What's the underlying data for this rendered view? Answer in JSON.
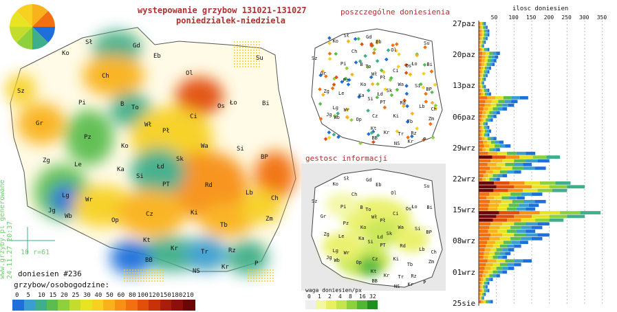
{
  "title": "wystepowanie grzybow 131021-131027",
  "subtitle": "poniedzialek-niedziela",
  "sidebar_note": "www.grzyby.pl generowane 24.11.27 20:37",
  "radius_label": "10 r=61",
  "reports_count": "doniesien #236",
  "per_person_label": "grzybow/osobogodzine:",
  "intensity_legend": {
    "ticks": [
      "0",
      "5",
      "10",
      "15",
      "20",
      "25",
      "30",
      "40",
      "50",
      "60",
      "80",
      "100",
      "120",
      "150",
      "180",
      "210"
    ],
    "colors": [
      "#1e6fd9",
      "#3a9fd0",
      "#3fae8a",
      "#5bbd4f",
      "#8fd13c",
      "#c4dc2e",
      "#e8e423",
      "#f7d021",
      "#f9b21c",
      "#f79015",
      "#f2700f",
      "#e24f0b",
      "#c83208",
      "#a81e0b",
      "#8c0f0b",
      "#6c0606"
    ]
  },
  "right_top_title": "poszczególne doniesienia",
  "right_mid_title": "gestosc informacji",
  "weight_legend": {
    "label": "waga doniesien/px",
    "ticks": [
      "0",
      "1",
      "2",
      "4",
      "8",
      "16",
      "32"
    ],
    "colors": [
      "#eeeeee",
      "#f2f7a0",
      "#e8f060",
      "#c6e54a",
      "#8fd13c",
      "#4fb830",
      "#1f8f20"
    ]
  },
  "main_cities": [
    {
      "label": "Sł"
    },
    {
      "label": "Gd"
    },
    {
      "label": "Eb"
    },
    {
      "label": "Su"
    },
    {
      "label": "Ko"
    },
    {
      "label": "Ol"
    },
    {
      "label": "Sz"
    },
    {
      "label": "Ch"
    },
    {
      "label": "Ło"
    },
    {
      "label": "Bi"
    },
    {
      "label": "Pi"
    },
    {
      "label": "B"
    },
    {
      "label": "To"
    },
    {
      "label": "Os"
    },
    {
      "label": "Gr"
    },
    {
      "label": "Ci"
    },
    {
      "label": "Wł"
    },
    {
      "label": "Pł"
    },
    {
      "label": "Pz"
    },
    {
      "label": "Wa"
    },
    {
      "label": "Ko"
    },
    {
      "label": "Si"
    },
    {
      "label": "Zg"
    },
    {
      "label": "Le"
    },
    {
      "label": "Sk"
    },
    {
      "label": "BP"
    },
    {
      "label": "Ka"
    },
    {
      "label": "Łd"
    },
    {
      "label": "Si"
    },
    {
      "label": "PT"
    },
    {
      "label": "Rd"
    },
    {
      "label": "Lb"
    },
    {
      "label": "Ch"
    },
    {
      "label": "Lg"
    },
    {
      "label": "Wr"
    },
    {
      "label": "Jg"
    },
    {
      "label": "Wb"
    },
    {
      "label": "Op"
    },
    {
      "label": "Cz"
    },
    {
      "label": "Ki"
    },
    {
      "label": "Tb"
    },
    {
      "label": "Zm"
    },
    {
      "label": "Kt"
    },
    {
      "label": "Kr"
    },
    {
      "label": "Tr"
    },
    {
      "label": "Rz"
    },
    {
      "label": "BB"
    },
    {
      "label": "NS"
    },
    {
      "label": "Kr"
    },
    {
      "label": "P"
    }
  ],
  "chart_data": {
    "type": "bar",
    "title": "ilosc doniesien",
    "orientation": "horizontal",
    "x_ticks": [
      50,
      100,
      150,
      200,
      250,
      300,
      350
    ],
    "xlim": [
      0,
      370
    ],
    "date_labels": [
      "27paz",
      "20paz",
      "13paz",
      "06paz",
      "29wrz",
      "22wrz",
      "15wrz",
      "08wrz",
      "01wrz",
      "25sie"
    ],
    "values": [
      20,
      25,
      30,
      30,
      25,
      20,
      15,
      30,
      60,
      55,
      50,
      45,
      35,
      30,
      25,
      20,
      15,
      20,
      30,
      35,
      140,
      110,
      100,
      80,
      60,
      50,
      40,
      25,
      30,
      35,
      30,
      50,
      70,
      90,
      60,
      160,
      230,
      200,
      150,
      190,
      120,
      80,
      60,
      260,
      300,
      250,
      180,
      130,
      190,
      170,
      160,
      345,
      300,
      240,
      200,
      180,
      160,
      200,
      180,
      140,
      120,
      100,
      90,
      80,
      150,
      120,
      100,
      80,
      60,
      40,
      30,
      25,
      30,
      20,
      15,
      40
    ]
  }
}
